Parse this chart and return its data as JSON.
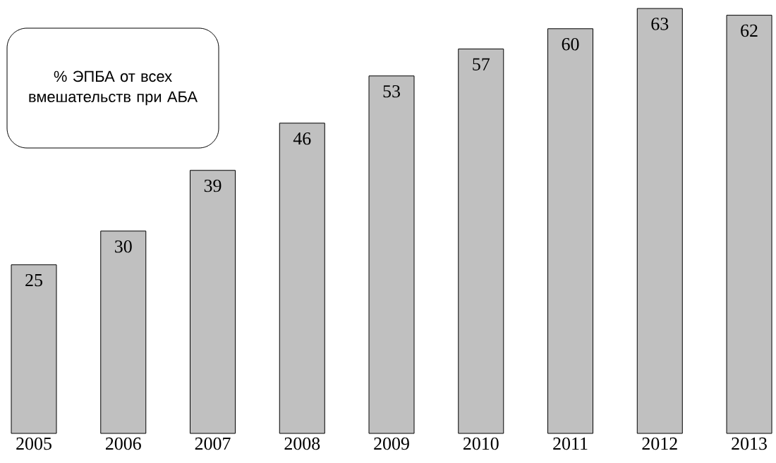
{
  "chart_data": {
    "type": "bar",
    "title": "% ЭПБА от всех вмешательств при АБА",
    "categories": [
      "2005",
      "2006",
      "2007",
      "2008",
      "2009",
      "2010",
      "2011",
      "2012",
      "2013"
    ],
    "values": [
      25,
      30,
      39,
      46,
      53,
      57,
      60,
      63,
      62
    ],
    "color": "#c0c0c0",
    "data_labels": true
  }
}
